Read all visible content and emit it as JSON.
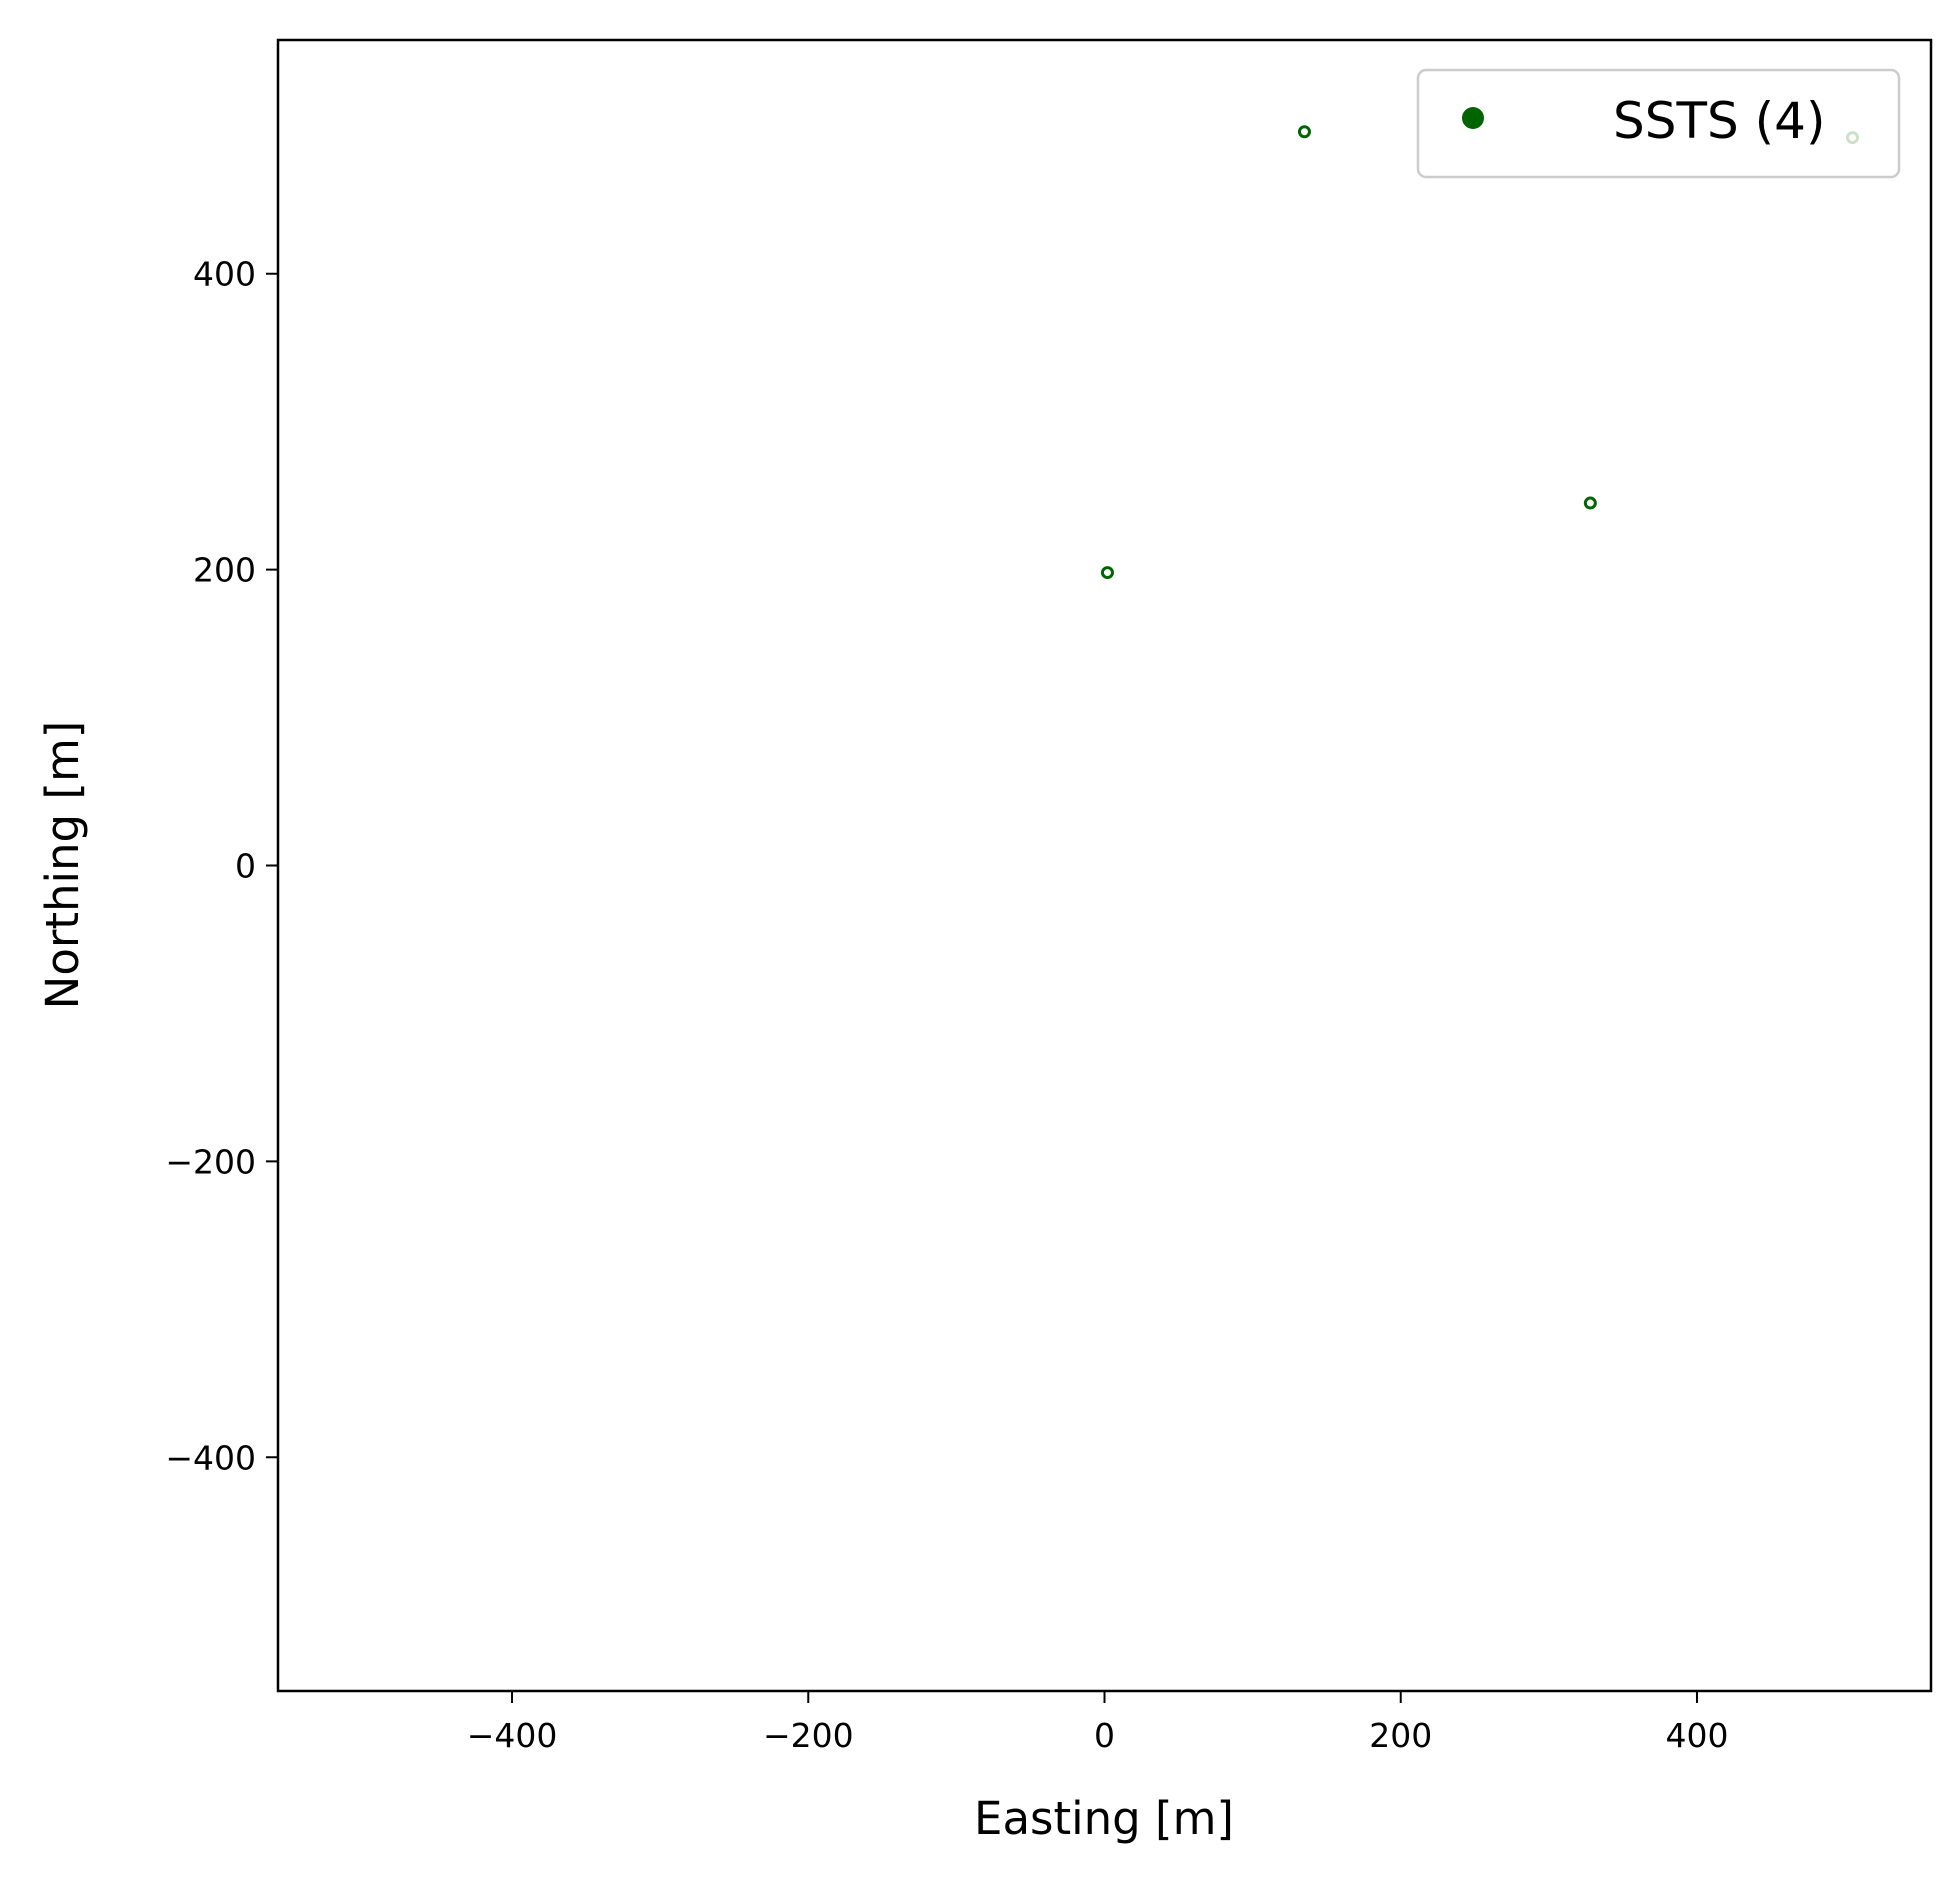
{
  "chart_data": {
    "type": "scatter",
    "xlabel": "Easting [m]",
    "ylabel": "Northing [m]",
    "xlim": [
      -558,
      558
    ],
    "ylim": [
      -558,
      558
    ],
    "xticks": [
      -400,
      -200,
      0,
      200,
      400
    ],
    "yticks": [
      -400,
      -200,
      0,
      200,
      400
    ],
    "grid": false,
    "legend_position": "top-right",
    "series": [
      {
        "name": "SSTS (4)",
        "color": "#006400",
        "points": [
          {
            "x": 2,
            "y": 198
          },
          {
            "x": 135,
            "y": 496
          },
          {
            "x": 328,
            "y": 245
          },
          {
            "x": 505,
            "y": 492
          }
        ]
      }
    ]
  }
}
